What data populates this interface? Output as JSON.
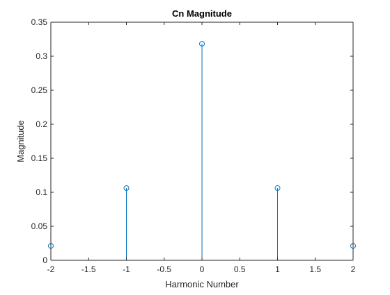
{
  "chart_data": {
    "type": "stem",
    "title": "Cn Magnitude",
    "xlabel": "Harmonic Number",
    "ylabel": "Magnitude",
    "xlim": [
      -2,
      2
    ],
    "ylim": [
      0,
      0.35
    ],
    "xticks": [
      "-2",
      "-1.5",
      "-1",
      "-0.5",
      "0",
      "0.5",
      "1",
      "1.5",
      "2"
    ],
    "yticks": [
      "0",
      "0.05",
      "0.1",
      "0.15",
      "0.2",
      "0.25",
      "0.3",
      "0.35"
    ],
    "grid": false,
    "series": [
      {
        "x": [
          -2,
          -1,
          0,
          1,
          2
        ],
        "y": [
          0.0212,
          0.1061,
          0.3183,
          0.1061,
          0.0212
        ],
        "marker": "circle-open",
        "color": "#0072bd"
      }
    ]
  }
}
